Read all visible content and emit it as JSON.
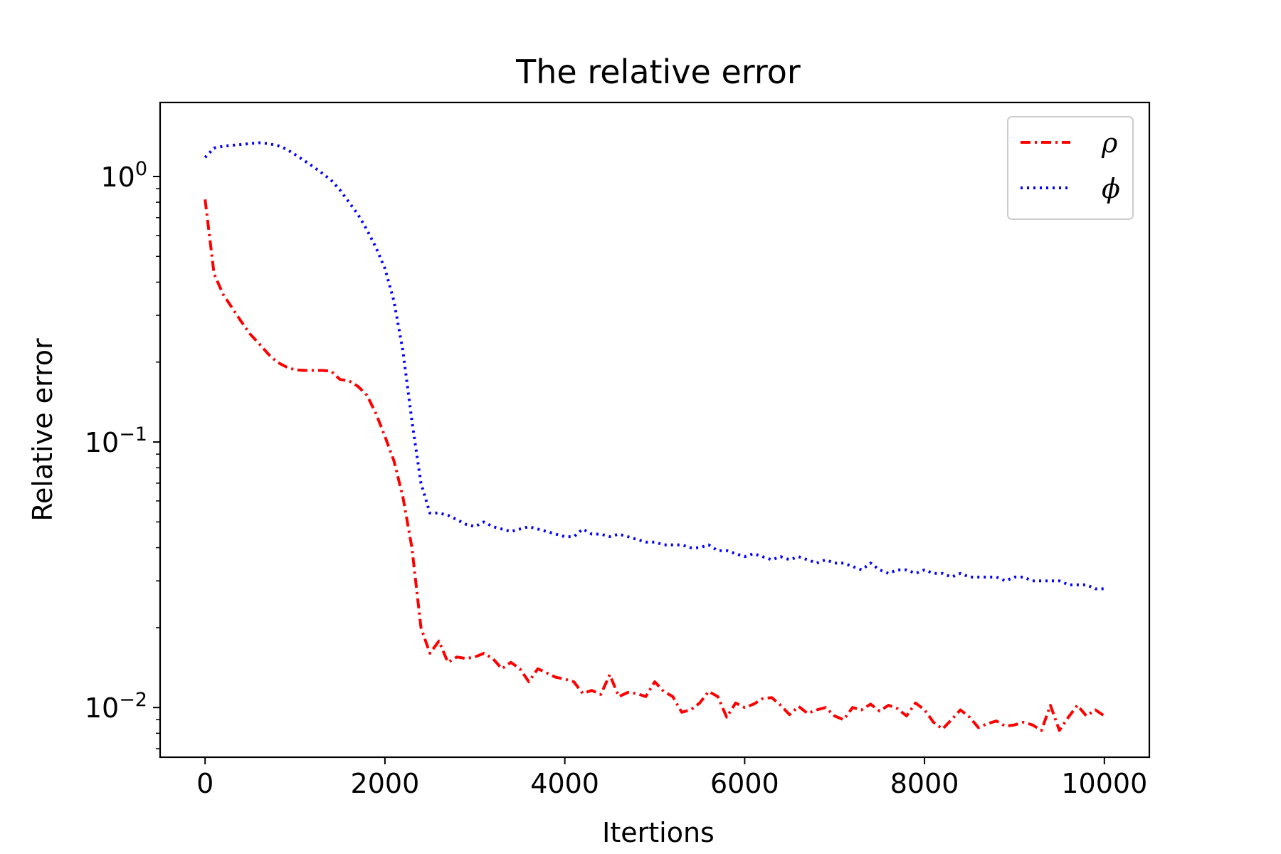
{
  "chart_data": {
    "type": "line",
    "title": "The relative error",
    "xlabel": "Itertions",
    "ylabel": "Relative error",
    "xlim": [
      -500,
      10500
    ],
    "ylim": [
      0.0065,
      1.9
    ],
    "yscale": "log",
    "xticks": [
      0,
      2000,
      4000,
      6000,
      8000,
      10000
    ],
    "xtick_labels": [
      "0",
      "2000",
      "4000",
      "6000",
      "8000",
      "10000"
    ],
    "yticks": [
      {
        "value": 1,
        "base": "10",
        "exp": "0"
      },
      {
        "value": 0.1,
        "base": "10",
        "exp": "−1"
      },
      {
        "value": 0.01,
        "base": "10",
        "exp": "−2"
      }
    ],
    "grid": false,
    "legend_position": "top-right",
    "series": [
      {
        "name": "ρ",
        "color": "#ff0000",
        "style": "dashdot",
        "x": [
          0,
          100,
          200,
          300,
          400,
          500,
          600,
          700,
          800,
          900,
          1000,
          1100,
          1200,
          1300,
          1400,
          1500,
          1600,
          1700,
          1800,
          1900,
          2000,
          2100,
          2200,
          2300,
          2400,
          2500,
          2600,
          2700,
          2800,
          2900,
          3000,
          3100,
          3200,
          3300,
          3400,
          3500,
          3600,
          3700,
          3800,
          3900,
          4000,
          4100,
          4200,
          4300,
          4400,
          4500,
          4600,
          4700,
          4800,
          4900,
          5000,
          5100,
          5200,
          5300,
          5400,
          5500,
          5600,
          5700,
          5800,
          5900,
          6000,
          6100,
          6200,
          6300,
          6400,
          6500,
          6600,
          6700,
          6800,
          6900,
          7000,
          7100,
          7200,
          7300,
          7400,
          7500,
          7600,
          7700,
          7800,
          7900,
          8000,
          8100,
          8200,
          8300,
          8400,
          8500,
          8600,
          8700,
          8800,
          8900,
          9000,
          9100,
          9200,
          9300,
          9400,
          9500,
          9600,
          9700,
          9800,
          9900,
          10000
        ],
        "y": [
          0.82,
          0.43,
          0.36,
          0.32,
          0.285,
          0.255,
          0.235,
          0.215,
          0.2,
          0.192,
          0.187,
          0.186,
          0.186,
          0.186,
          0.185,
          0.172,
          0.17,
          0.162,
          0.15,
          0.128,
          0.105,
          0.085,
          0.062,
          0.04,
          0.02,
          0.016,
          0.0178,
          0.0148,
          0.0155,
          0.0153,
          0.0155,
          0.016,
          0.0153,
          0.014,
          0.0148,
          0.014,
          0.0125,
          0.014,
          0.0135,
          0.013,
          0.0128,
          0.0125,
          0.0113,
          0.0116,
          0.0112,
          0.0133,
          0.011,
          0.0114,
          0.0113,
          0.011,
          0.0125,
          0.0115,
          0.011,
          0.0096,
          0.0098,
          0.0104,
          0.0115,
          0.011,
          0.0092,
          0.0104,
          0.01,
          0.0103,
          0.0108,
          0.0109,
          0.0102,
          0.0094,
          0.0101,
          0.0095,
          0.0098,
          0.01,
          0.0093,
          0.009,
          0.01,
          0.0098,
          0.0103,
          0.0097,
          0.0102,
          0.0099,
          0.0093,
          0.0104,
          0.0098,
          0.0088,
          0.0083,
          0.009,
          0.0098,
          0.0092,
          0.0084,
          0.0087,
          0.0089,
          0.0085,
          0.0086,
          0.0088,
          0.0086,
          0.0082,
          0.0102,
          0.0082,
          0.0092,
          0.0102,
          0.0093,
          0.0098,
          0.0093
        ]
      },
      {
        "name": "ϕ",
        "color": "#0000ff",
        "style": "dotted",
        "x": [
          0,
          100,
          200,
          300,
          400,
          500,
          600,
          700,
          800,
          900,
          1000,
          1100,
          1200,
          1300,
          1400,
          1500,
          1600,
          1700,
          1800,
          1900,
          2000,
          2100,
          2200,
          2300,
          2400,
          2500,
          2600,
          2700,
          2800,
          2900,
          3000,
          3100,
          3200,
          3300,
          3400,
          3500,
          3600,
          3700,
          3800,
          3900,
          4000,
          4100,
          4200,
          4300,
          4400,
          4500,
          4600,
          4700,
          4800,
          4900,
          5000,
          5100,
          5200,
          5300,
          5400,
          5500,
          5600,
          5700,
          5800,
          5900,
          6000,
          6100,
          6200,
          6300,
          6400,
          6500,
          6600,
          6700,
          6800,
          6900,
          7000,
          7100,
          7200,
          7300,
          7400,
          7500,
          7600,
          7700,
          7800,
          7900,
          8000,
          8100,
          8200,
          8300,
          8400,
          8500,
          8600,
          8700,
          8800,
          8900,
          9000,
          9100,
          9200,
          9300,
          9400,
          9500,
          9600,
          9700,
          9800,
          9900,
          10000
        ],
        "y": [
          1.18,
          1.28,
          1.3,
          1.31,
          1.32,
          1.33,
          1.34,
          1.33,
          1.31,
          1.27,
          1.21,
          1.15,
          1.09,
          1.03,
          0.97,
          0.89,
          0.8,
          0.72,
          0.63,
          0.54,
          0.45,
          0.34,
          0.22,
          0.12,
          0.07,
          0.054,
          0.054,
          0.053,
          0.051,
          0.049,
          0.048,
          0.05,
          0.048,
          0.047,
          0.046,
          0.047,
          0.048,
          0.047,
          0.046,
          0.045,
          0.044,
          0.044,
          0.047,
          0.045,
          0.045,
          0.044,
          0.045,
          0.044,
          0.043,
          0.042,
          0.042,
          0.041,
          0.041,
          0.041,
          0.04,
          0.04,
          0.041,
          0.039,
          0.039,
          0.038,
          0.037,
          0.038,
          0.037,
          0.036,
          0.037,
          0.036,
          0.037,
          0.036,
          0.035,
          0.036,
          0.035,
          0.035,
          0.034,
          0.033,
          0.035,
          0.033,
          0.032,
          0.033,
          0.033,
          0.032,
          0.033,
          0.032,
          0.032,
          0.031,
          0.032,
          0.031,
          0.031,
          0.031,
          0.031,
          0.03,
          0.031,
          0.031,
          0.03,
          0.03,
          0.03,
          0.03,
          0.029,
          0.029,
          0.029,
          0.028,
          0.028
        ]
      }
    ]
  }
}
